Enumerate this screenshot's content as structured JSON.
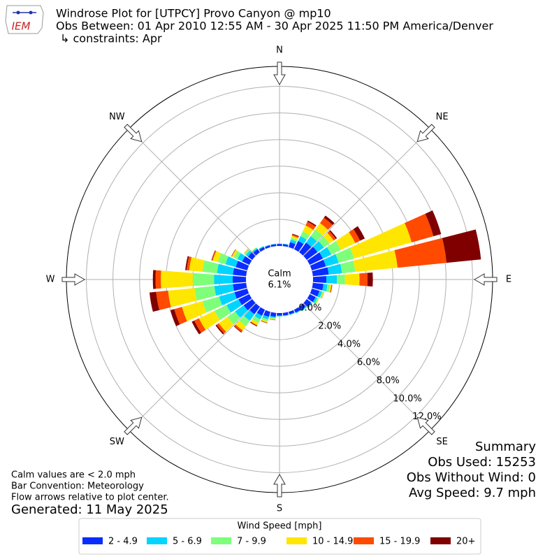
{
  "chart_data": {
    "type": "windrose",
    "title_lines": [
      "Windrose Plot for [UTPCY] Provo Canyon @ mp10",
      "Obs Between: 01 Apr 2010 12:55 AM - 30 Apr 2025 11:50 PM America/Denver",
      "↳ constraints: Apr"
    ],
    "logo_text": "IEM",
    "compass_labels": [
      "N",
      "NE",
      "E",
      "SE",
      "S",
      "SW",
      "W",
      "NW"
    ],
    "calm_label": "Calm",
    "calm_value": {
      "value": 6.1,
      "label": "6.1%"
    },
    "directions": [
      0,
      10,
      20,
      30,
      40,
      50,
      60,
      70,
      80,
      90,
      100,
      110,
      120,
      130,
      140,
      150,
      160,
      170,
      180,
      190,
      200,
      210,
      220,
      230,
      240,
      250,
      260,
      270,
      280,
      290,
      300,
      310,
      320,
      330,
      340,
      350
    ],
    "rlim": [
      0,
      13.5
    ],
    "rticks": [
      {
        "value": 0,
        "label": "0.0%"
      },
      {
        "value": 2,
        "label": "2.0%"
      },
      {
        "value": 4,
        "label": "4.0%"
      },
      {
        "value": 6,
        "label": "6.0%"
      },
      {
        "value": 8,
        "label": "8.0%"
      },
      {
        "value": 10,
        "label": "10.0%"
      },
      {
        "value": 12,
        "label": "12.0%"
      }
    ],
    "grid": true,
    "legend_title": "Wind Speed [mph]",
    "series": [
      {
        "name": "2 - 4.9",
        "color": "#0a2dff",
        "values": [
          0.15,
          0.15,
          0.4,
          0.7,
          0.9,
          1.0,
          1.1,
          1.1,
          1.2,
          1.0,
          0.8,
          0.6,
          0.5,
          0.4,
          0.3,
          0.25,
          0.2,
          0.2,
          0.2,
          0.3,
          0.4,
          0.5,
          0.7,
          0.8,
          0.9,
          1.0,
          1.0,
          1.0,
          1.0,
          0.9,
          0.6,
          0.4,
          0.3,
          0.2,
          0.15,
          0.15
        ]
      },
      {
        "name": "5 - 6.9",
        "color": "#00d4ff",
        "values": [
          0.03,
          0.04,
          0.2,
          0.4,
          0.6,
          0.6,
          0.7,
          1.0,
          1.0,
          0.8,
          0.3,
          0.2,
          0.15,
          0.1,
          0.08,
          0.05,
          0.05,
          0.05,
          0.05,
          0.1,
          0.2,
          0.3,
          0.6,
          0.8,
          1.0,
          1.2,
          1.4,
          1.4,
          1.2,
          0.8,
          0.4,
          0.2,
          0.1,
          0.06,
          0.04,
          0.03
        ]
      },
      {
        "name": "7 - 9.9",
        "color": "#7dff7a",
        "values": [
          0,
          0.01,
          0.15,
          0.4,
          0.6,
          0.5,
          0.8,
          1.2,
          1.0,
          0.6,
          0.2,
          0.1,
          0.1,
          0.05,
          0.03,
          0.02,
          0.02,
          0.02,
          0.02,
          0.08,
          0.15,
          0.3,
          0.5,
          0.7,
          1.0,
          1.3,
          1.5,
          1.6,
          1.1,
          0.6,
          0.3,
          0.12,
          0.05,
          0.02,
          0.01,
          0.01
        ]
      },
      {
        "name": "10 - 14.9",
        "color": "#ffe600",
        "values": [
          0,
          0,
          0.15,
          0.5,
          0.6,
          0.4,
          1.2,
          4.5,
          3.2,
          1.1,
          0.1,
          0.05,
          0.05,
          0,
          0,
          0,
          0,
          0,
          0.01,
          0.05,
          0.1,
          0.2,
          0.4,
          0.8,
          1.3,
          1.6,
          2.0,
          2.4,
          1.0,
          0.4,
          0.15,
          0.05,
          0.02,
          0,
          0,
          0
        ]
      },
      {
        "name": "15 - 19.9",
        "color": "#ff4a00",
        "values": [
          0,
          0,
          0.1,
          0.3,
          0.5,
          0.2,
          0.4,
          1.7,
          3.7,
          0.6,
          0.05,
          0.02,
          0,
          0,
          0,
          0,
          0,
          0,
          0,
          0.02,
          0.03,
          0.05,
          0.15,
          0.2,
          0.4,
          0.6,
          0.9,
          0.4,
          0.2,
          0.07,
          0.03,
          0.02,
          0,
          0,
          0,
          0
        ]
      },
      {
        "name": "20+",
        "color": "#800000",
        "values": [
          0,
          0,
          0.05,
          0.1,
          0.2,
          0.1,
          0.4,
          0.6,
          2.6,
          0.4,
          0.02,
          0,
          0,
          0,
          0,
          0,
          0,
          0,
          0,
          0.01,
          0.02,
          0.05,
          0.05,
          0.1,
          0.2,
          0.3,
          0.5,
          0.2,
          0.1,
          0.03,
          0.02,
          0,
          0,
          0,
          0,
          0
        ]
      }
    ],
    "summary_lines": [
      "Summary",
      "Obs Used: 15253",
      "Obs Without Wind: 0",
      "Avg Speed: 9.7 mph"
    ],
    "notes": [
      "Calm values are < 2.0 mph",
      "Bar Convention: Meteorology",
      "Flow arrows relative to plot center."
    ],
    "generated": "Generated: 11 May 2025"
  }
}
